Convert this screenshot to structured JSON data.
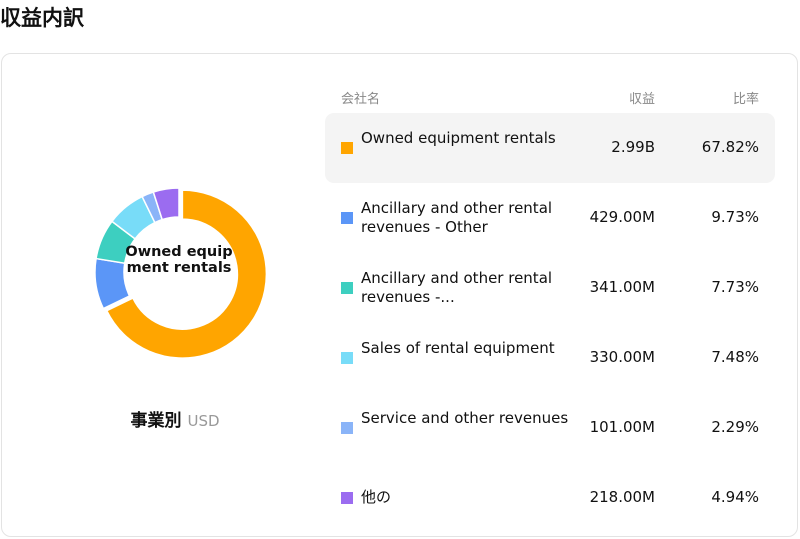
{
  "page": {
    "title": "収益内訳"
  },
  "chart_data": {
    "type": "pie",
    "center_label": "Owned equipment rentals",
    "caption": "事業別",
    "unit": "USD",
    "table": {
      "headers": {
        "name": "会社名",
        "revenue": "収益",
        "ratio": "比率"
      }
    },
    "slices": [
      {
        "name": "Owned equipment rentals",
        "display_name": "Owned equipment rentals",
        "revenue": "2.99B",
        "ratio": "67.82%",
        "value": 67.82,
        "color": "#FFA500"
      },
      {
        "name": "Ancillary and other rental revenues - Other",
        "display_name": "Ancillary and other rental revenues - Other",
        "revenue": "429.00M",
        "ratio": "9.73%",
        "value": 9.73,
        "color": "#5B96F7"
      },
      {
        "name": "Ancillary and other rental revenues -...",
        "display_name": "Ancillary and other rental revenues -...",
        "revenue": "341.00M",
        "ratio": "7.73%",
        "value": 7.73,
        "color": "#3DCFC0"
      },
      {
        "name": "Sales of rental equipment",
        "display_name": "Sales of rental equipment",
        "revenue": "330.00M",
        "ratio": "7.48%",
        "value": 7.48,
        "color": "#78DCF8"
      },
      {
        "name": "Service and other revenues",
        "display_name": "Service and other revenues",
        "revenue": "101.00M",
        "ratio": "2.29%",
        "value": 2.29,
        "color": "#8AB4F8"
      },
      {
        "name": "他の",
        "display_name": "他の",
        "revenue": "218.00M",
        "ratio": "4.94%",
        "value": 4.94,
        "color": "#9B6CF0"
      }
    ],
    "highlighted_index": 0
  }
}
